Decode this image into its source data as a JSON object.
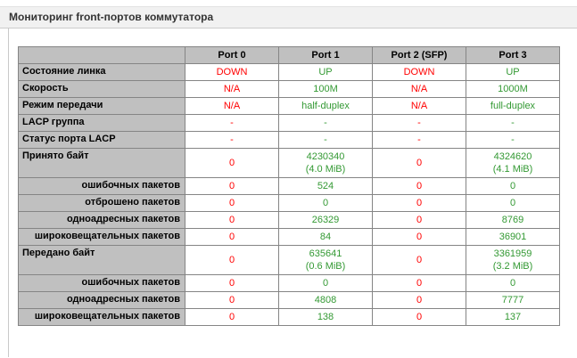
{
  "header": {
    "title": "Мониторинг front-портов коммутатора"
  },
  "colors": {
    "link_down": "#ff0000",
    "link_up": "#339933",
    "header_bg": "#c0c0c0",
    "titlebar_bg": "#f1f1f1",
    "table_border": "#858585"
  },
  "table": {
    "columns": [
      {
        "label": "Port 0",
        "state": "down"
      },
      {
        "label": "Port 1",
        "state": "up"
      },
      {
        "label": "Port 2 (SFP)",
        "state": "down"
      },
      {
        "label": "Port 3",
        "state": "up"
      }
    ],
    "rows": [
      {
        "label": "Состояние линка",
        "indent": false,
        "values": [
          "DOWN",
          "UP",
          "DOWN",
          "UP"
        ]
      },
      {
        "label": "Скорость",
        "indent": false,
        "values": [
          "N/A",
          "100M",
          "N/A",
          "1000M"
        ]
      },
      {
        "label": "Режим передачи",
        "indent": false,
        "values": [
          "N/A",
          "half-duplex",
          "N/A",
          "full-duplex"
        ]
      },
      {
        "label": "LACP группа",
        "indent": false,
        "values": [
          "-",
          "-",
          "-",
          "-"
        ]
      },
      {
        "label": "Статус порта LACP",
        "indent": false,
        "values": [
          "-",
          "-",
          "-",
          "-"
        ]
      },
      {
        "label": "Принято байт",
        "indent": false,
        "values": [
          "0",
          "4230340\n(4.0 MiB)",
          "0",
          "4324620\n(4.1 MiB)"
        ]
      },
      {
        "label": "ошибочных пакетов",
        "indent": true,
        "values": [
          "0",
          "524",
          "0",
          "0"
        ]
      },
      {
        "label": "отброшено пакетов",
        "indent": true,
        "values": [
          "0",
          "0",
          "0",
          "0"
        ]
      },
      {
        "label": "одноадресных пакетов",
        "indent": true,
        "values": [
          "0",
          "26329",
          "0",
          "8769"
        ]
      },
      {
        "label": "широковещательных пакетов",
        "indent": true,
        "values": [
          "0",
          "84",
          "0",
          "36901"
        ]
      },
      {
        "label": "Передано байт",
        "indent": false,
        "values": [
          "0",
          "635641\n(0.6 MiB)",
          "0",
          "3361959\n(3.2 MiB)"
        ]
      },
      {
        "label": "ошибочных пакетов",
        "indent": true,
        "values": [
          "0",
          "0",
          "0",
          "0"
        ]
      },
      {
        "label": "одноадресных пакетов",
        "indent": true,
        "values": [
          "0",
          "4808",
          "0",
          "7777"
        ]
      },
      {
        "label": "широковещательных пакетов",
        "indent": true,
        "values": [
          "0",
          "138",
          "0",
          "137"
        ]
      }
    ]
  }
}
